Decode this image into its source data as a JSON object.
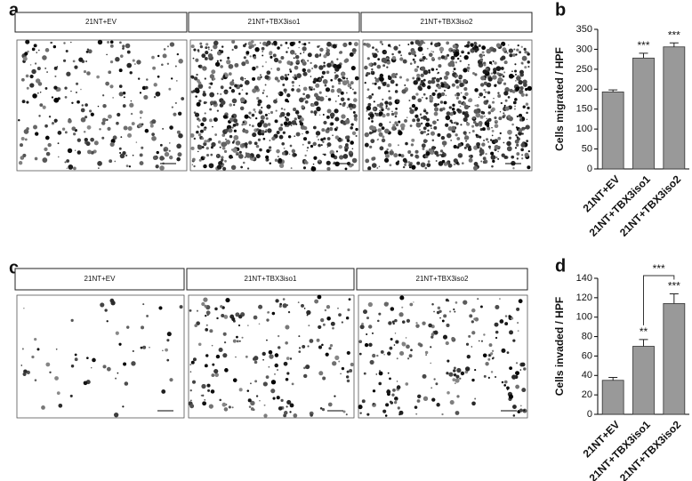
{
  "panels": {
    "labels": [
      "a",
      "b",
      "c",
      "d"
    ],
    "migration_images": [
      "21NT+EV",
      "21NT+TBX3iso1",
      "21NT+TBX3iso2"
    ],
    "invasion_images": [
      "21NT+EV",
      "21NT+TBX3iso1",
      "21NT+TBX3iso2"
    ]
  },
  "chart_data": [
    {
      "type": "bar",
      "ylabel": "Cells migrated / HPF",
      "categories": [
        "21NT+EV",
        "21NT+TBX3iso1",
        "21NT+TBX3iso2"
      ],
      "values": [
        193,
        278,
        306
      ],
      "errors": [
        5,
        12,
        10
      ],
      "annotations": [
        null,
        "***",
        "***"
      ],
      "color": "#999999",
      "ylim": [
        0,
        350
      ],
      "yticks": [
        0,
        50,
        100,
        150,
        200,
        250,
        300,
        350
      ]
    },
    {
      "type": "bar",
      "ylabel": "Cells invaded / HPF",
      "categories": [
        "21NT+EV",
        "21NT+TBX3iso1",
        "21NT+TBX3iso2"
      ],
      "values": [
        35,
        70,
        114
      ],
      "errors": [
        3,
        7,
        10
      ],
      "annotations": [
        null,
        "**",
        "***"
      ],
      "bracket_annotation": "***",
      "color": "#999999",
      "ylim": [
        0,
        140
      ],
      "yticks": [
        0,
        20,
        40,
        60,
        80,
        100,
        120,
        140
      ]
    }
  ]
}
